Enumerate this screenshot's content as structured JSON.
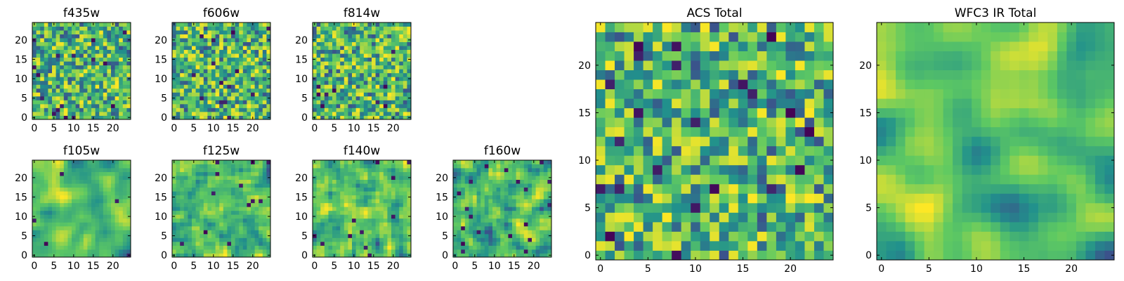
{
  "colormap": [
    "#440154",
    "#3b528b",
    "#21918c",
    "#5ec962",
    "#fde725"
  ],
  "chart_data": [
    {
      "type": "heatmap",
      "title": "f435w",
      "xlim": [
        0,
        24
      ],
      "ylim": [
        0,
        24
      ],
      "xticks": [
        0,
        5,
        10,
        15,
        20
      ],
      "yticks": [
        0,
        5,
        10,
        15,
        20
      ],
      "seed": 11,
      "smooth": 0,
      "lowbias": 0.02
    },
    {
      "type": "heatmap",
      "title": "f606w",
      "xlim": [
        0,
        24
      ],
      "ylim": [
        0,
        24
      ],
      "xticks": [
        0,
        5,
        10,
        15,
        20
      ],
      "yticks": [
        0,
        5,
        10,
        15,
        20
      ],
      "seed": 23,
      "smooth": 0,
      "lowbias": 0.02
    },
    {
      "type": "heatmap",
      "title": "f814w",
      "xlim": [
        0,
        24
      ],
      "ylim": [
        0,
        24
      ],
      "xticks": [
        0,
        5,
        10,
        15,
        20
      ],
      "yticks": [
        0,
        5,
        10,
        15,
        20
      ],
      "seed": 37,
      "smooth": 0,
      "lowbias": 0.02
    },
    {
      "type": "heatmap",
      "title": "f105w",
      "xlim": [
        0,
        24
      ],
      "ylim": [
        0,
        24
      ],
      "xticks": [
        0,
        5,
        10,
        15,
        20
      ],
      "yticks": [
        0,
        5,
        10,
        15,
        20
      ],
      "seed": 41,
      "smooth": 2,
      "lowbias": 0.01
    },
    {
      "type": "heatmap",
      "title": "f125w",
      "xlim": [
        0,
        24
      ],
      "ylim": [
        0,
        24
      ],
      "xticks": [
        0,
        5,
        10,
        15,
        20
      ],
      "yticks": [
        0,
        5,
        10,
        15,
        20
      ],
      "seed": 53,
      "smooth": 1,
      "lowbias": 0.02
    },
    {
      "type": "heatmap",
      "title": "f140w",
      "xlim": [
        0,
        24
      ],
      "ylim": [
        0,
        24
      ],
      "xticks": [
        0,
        5,
        10,
        15,
        20
      ],
      "yticks": [
        0,
        5,
        10,
        15,
        20
      ],
      "seed": 67,
      "smooth": 1,
      "lowbias": 0.03
    },
    {
      "type": "heatmap",
      "title": "f160w",
      "xlim": [
        0,
        24
      ],
      "ylim": [
        0,
        24
      ],
      "xticks": [
        0,
        5,
        10,
        15,
        20
      ],
      "yticks": [
        0,
        5,
        10,
        15,
        20
      ],
      "seed": 79,
      "smooth": 1,
      "lowbias": 0.03
    },
    {
      "type": "heatmap",
      "title": "ACS Total",
      "xlim": [
        0,
        24
      ],
      "ylim": [
        0,
        24
      ],
      "xticks": [
        0,
        5,
        10,
        15,
        20
      ],
      "yticks": [
        0,
        5,
        10,
        15,
        20
      ],
      "seed": 97,
      "smooth": 0,
      "lowbias": 0.03
    },
    {
      "type": "heatmap",
      "title": "WFC3 IR Total",
      "xlim": [
        0,
        24
      ],
      "ylim": [
        0,
        24
      ],
      "xticks": [
        0,
        5,
        10,
        15,
        20
      ],
      "yticks": [
        0,
        5,
        10,
        15,
        20
      ],
      "seed": 131,
      "smooth": 3,
      "lowbias": 0.0
    }
  ]
}
